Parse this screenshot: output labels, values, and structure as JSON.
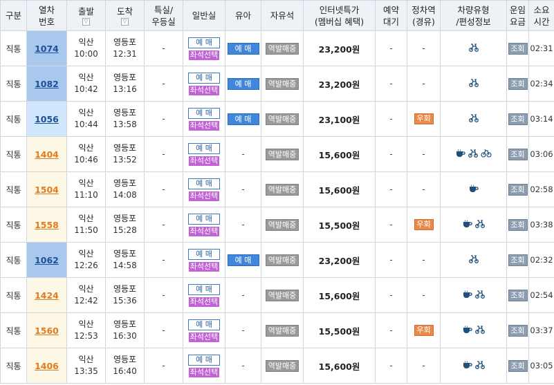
{
  "headers": {
    "category": "구분",
    "train_no_1": "열차",
    "train_no_2": "번호",
    "departure": "출발",
    "arrival": "도착",
    "special_1": "특실/",
    "special_2": "우등실",
    "general": "일반실",
    "infant": "유아",
    "free_seat": "자유석",
    "internet_1": "인터넷특가",
    "internet_2": "(멤버십 혜택)",
    "reserve_1": "예약",
    "reserve_2": "대기",
    "stop_1": "정차역",
    "stop_2": "(경유)",
    "vehicle_1": "차량유형",
    "vehicle_2": "/편성정보",
    "fare_1": "운임",
    "fare_2": "요금",
    "duration_1": "소요",
    "duration_2": "시간",
    "sort_glyph": "▽"
  },
  "labels": {
    "reserve": "예 매",
    "seat_select": "좌석선택",
    "infant_reserve": "예 매",
    "standing": "역발매중",
    "stopover": "우회",
    "lookup": "조회",
    "dash": "-"
  },
  "colors": {
    "ktx_train_number": "#1a4f9a",
    "mugunghwa_train_number": "#e27a1e",
    "ktx_cell": "#aac7ee",
    "saemaeul_cell": "#cfe6fb",
    "mugunghwa_cell": "#fdf8e6",
    "icon": "#1f4f7a"
  },
  "rows": [
    {
      "category": "직통",
      "train_no": "1074",
      "train_type": "ktx",
      "dep_station": "익산",
      "dep_time": "10:00",
      "arr_station": "영등포",
      "arr_time": "12:31",
      "special": "-",
      "infant": "예 매",
      "free_seat": "역발매중",
      "price": "23,200원",
      "waitlist": "-",
      "stop": "-",
      "icons": [
        "bicycle-icon"
      ],
      "duration": "02:31"
    },
    {
      "category": "직통",
      "train_no": "1082",
      "train_type": "ktx",
      "dep_station": "익산",
      "dep_time": "10:42",
      "arr_station": "영등포",
      "arr_time": "13:16",
      "special": "-",
      "infant": "예 매",
      "free_seat": "역발매중",
      "price": "23,200원",
      "waitlist": "-",
      "stop": "-",
      "icons": [
        "bicycle-icon"
      ],
      "duration": "02:34"
    },
    {
      "category": "직통",
      "train_no": "1056",
      "train_type": "saemaeul",
      "dep_station": "익산",
      "dep_time": "10:44",
      "arr_station": "영등포",
      "arr_time": "13:58",
      "special": "-",
      "infant": "예 매",
      "free_seat": "역발매중",
      "price": "23,100원",
      "waitlist": "-",
      "stop": "우회",
      "icons": [
        "bicycle-icon"
      ],
      "duration": "03:14"
    },
    {
      "category": "직통",
      "train_no": "1404",
      "train_type": "mugunghwa",
      "dep_station": "익산",
      "dep_time": "10:46",
      "arr_station": "영등포",
      "arr_time": "13:52",
      "special": "-",
      "infant": "-",
      "free_seat": "역발매중",
      "price": "15,600원",
      "waitlist": "-",
      "stop": "-",
      "icons": [
        "cafe-icon",
        "bicycle-icon",
        "bicycle-rack-icon"
      ],
      "duration": "03:06"
    },
    {
      "category": "직통",
      "train_no": "1504",
      "train_type": "mugunghwa",
      "dep_station": "익산",
      "dep_time": "11:10",
      "arr_station": "영등포",
      "arr_time": "14:08",
      "special": "-",
      "infant": "-",
      "free_seat": "역발매중",
      "price": "15,600원",
      "waitlist": "-",
      "stop": "-",
      "icons": [
        "cafe-icon"
      ],
      "duration": "02:58"
    },
    {
      "category": "직통",
      "train_no": "1558",
      "train_type": "mugunghwa",
      "dep_station": "익산",
      "dep_time": "11:50",
      "arr_station": "영등포",
      "arr_time": "15:28",
      "special": "-",
      "infant": "-",
      "free_seat": "역발매중",
      "price": "15,500원",
      "waitlist": "-",
      "stop": "우회",
      "icons": [
        "cafe-icon",
        "bicycle-icon"
      ],
      "duration": "03:38"
    },
    {
      "category": "직통",
      "train_no": "1062",
      "train_type": "ktx",
      "dep_station": "익산",
      "dep_time": "12:26",
      "arr_station": "영등포",
      "arr_time": "14:58",
      "special": "-",
      "infant": "예 매",
      "free_seat": "역발매중",
      "price": "23,200원",
      "waitlist": "-",
      "stop": "-",
      "icons": [
        "bicycle-icon"
      ],
      "duration": "02:32"
    },
    {
      "category": "직통",
      "train_no": "1424",
      "train_type": "mugunghwa",
      "dep_station": "익산",
      "dep_time": "12:42",
      "arr_station": "영등포",
      "arr_time": "15:36",
      "special": "-",
      "infant": "-",
      "free_seat": "역발매중",
      "price": "15,600원",
      "waitlist": "-",
      "stop": "-",
      "icons": [
        "cafe-icon",
        "bicycle-icon"
      ],
      "duration": "02:54"
    },
    {
      "category": "직통",
      "train_no": "1560",
      "train_type": "mugunghwa",
      "dep_station": "익산",
      "dep_time": "12:53",
      "arr_station": "영등포",
      "arr_time": "16:30",
      "special": "-",
      "infant": "-",
      "free_seat": "역발매중",
      "price": "15,500원",
      "waitlist": "-",
      "stop": "우회",
      "icons": [
        "cafe-icon",
        "bicycle-icon"
      ],
      "duration": "03:37"
    },
    {
      "category": "직통",
      "train_no": "1406",
      "train_type": "mugunghwa",
      "dep_station": "익산",
      "dep_time": "13:35",
      "arr_station": "영등포",
      "arr_time": "16:40",
      "special": "-",
      "infant": "-",
      "free_seat": "역발매중",
      "price": "15,600원",
      "waitlist": "-",
      "stop": "-",
      "icons": [
        "cafe-icon",
        "bicycle-icon"
      ],
      "duration": "03:05"
    }
  ]
}
